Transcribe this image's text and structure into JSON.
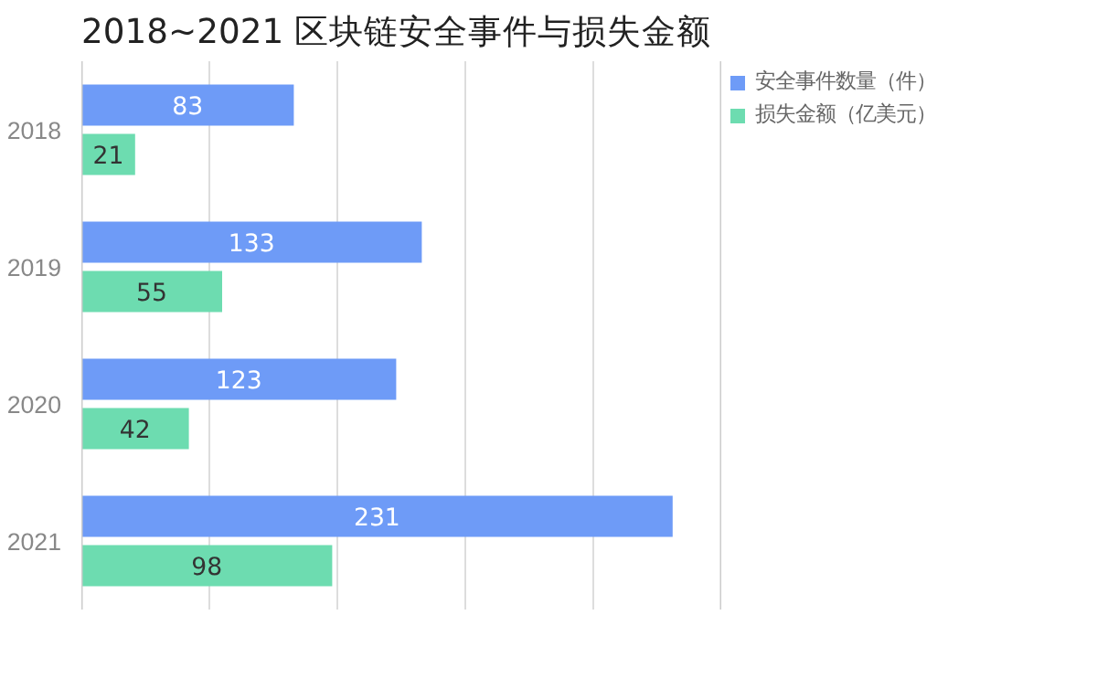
{
  "chart_data": {
    "type": "bar",
    "orientation": "horizontal",
    "title": "2018~2021 区块链安全事件与损失金额",
    "categories": [
      "2018",
      "2019",
      "2020",
      "2021"
    ],
    "series": [
      {
        "name": "安全事件数量（件）",
        "color": "#6e9bf7",
        "values": [
          83,
          133,
          123,
          231
        ]
      },
      {
        "name": "损失金额（亿美元）",
        "color": "#6ddcb0",
        "values": [
          21,
          55,
          42,
          98
        ]
      }
    ],
    "xlim": [
      0,
      250
    ],
    "xticks": [
      {
        "value": 0,
        "label": null
      },
      {
        "value": 50,
        "label": null
      },
      {
        "value": 100,
        "label": null
      },
      {
        "value": 150,
        "label": null
      },
      {
        "value": 200,
        "label": null
      },
      {
        "value": 250,
        "label": null
      }
    ],
    "tick_labels": "y",
    "grid": "x",
    "legend": "top right",
    "data_labels": true
  }
}
